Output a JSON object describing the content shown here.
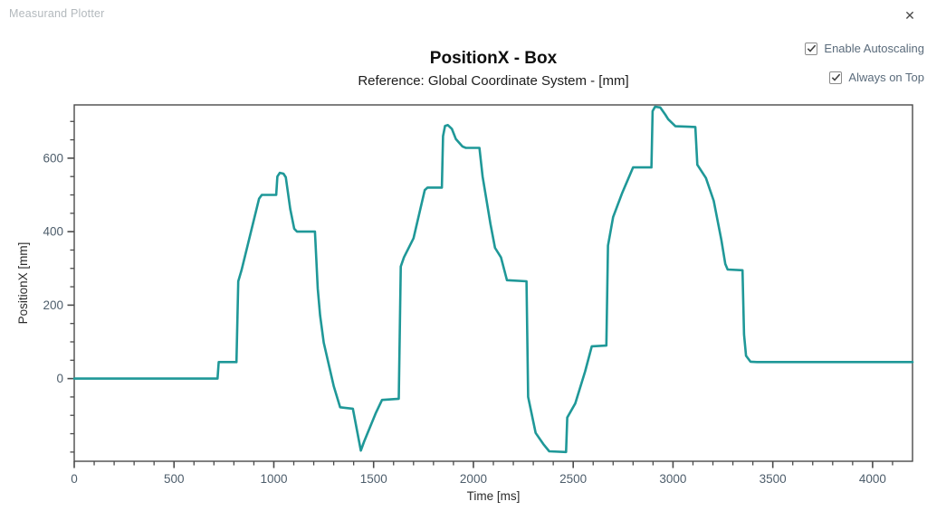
{
  "window": {
    "title": "Measurand Plotter",
    "close_glyph": "✕"
  },
  "controls": {
    "autoscaling": {
      "label": "Enable Autoscaling",
      "checked": true
    },
    "always_on_top": {
      "label": "Always on Top",
      "checked": true
    }
  },
  "chart_data": {
    "type": "line",
    "title": "PositionX - Box",
    "subtitle": "Reference: Global Coordinate System - [mm]",
    "xlabel": "Time [ms]",
    "ylabel": "PositionX [mm]",
    "xlim": [
      0,
      4200
    ],
    "ylim": [
      -225,
      745
    ],
    "xticks": {
      "major": [
        0,
        500,
        1000,
        1500,
        2000,
        2500,
        3000,
        3500,
        4000
      ],
      "minor_step": 100
    },
    "yticks": {
      "major": [
        0,
        200,
        400,
        600
      ],
      "minor_step": 50
    },
    "grid": false,
    "legend": "none",
    "colors": {
      "line": "#1f9898",
      "axis": "#4a4a4a",
      "tick_label": "#4d5d6b",
      "title": "#0e0e0e"
    },
    "series": [
      {
        "name": "PositionX",
        "points": [
          [
            0,
            0
          ],
          [
            718,
            0
          ],
          [
            724,
            45
          ],
          [
            813,
            45
          ],
          [
            822,
            265
          ],
          [
            838,
            295
          ],
          [
            926,
            490
          ],
          [
            940,
            500
          ],
          [
            1012,
            500
          ],
          [
            1018,
            550
          ],
          [
            1030,
            560
          ],
          [
            1048,
            558
          ],
          [
            1060,
            548
          ],
          [
            1082,
            462
          ],
          [
            1102,
            408
          ],
          [
            1116,
            400
          ],
          [
            1206,
            400
          ],
          [
            1220,
            245
          ],
          [
            1232,
            172
          ],
          [
            1250,
            98
          ],
          [
            1300,
            -20
          ],
          [
            1332,
            -78
          ],
          [
            1396,
            -82
          ],
          [
            1436,
            -196
          ],
          [
            1452,
            -172
          ],
          [
            1510,
            -95
          ],
          [
            1542,
            -58
          ],
          [
            1626,
            -55
          ],
          [
            1636,
            305
          ],
          [
            1652,
            330
          ],
          [
            1700,
            382
          ],
          [
            1756,
            513
          ],
          [
            1770,
            520
          ],
          [
            1842,
            520
          ],
          [
            1848,
            660
          ],
          [
            1858,
            688
          ],
          [
            1872,
            690
          ],
          [
            1892,
            680
          ],
          [
            1912,
            652
          ],
          [
            1945,
            632
          ],
          [
            1962,
            628
          ],
          [
            2030,
            628
          ],
          [
            2046,
            550
          ],
          [
            2085,
            422
          ],
          [
            2108,
            356
          ],
          [
            2138,
            330
          ],
          [
            2168,
            268
          ],
          [
            2266,
            265
          ],
          [
            2274,
            -50
          ],
          [
            2312,
            -148
          ],
          [
            2350,
            -178
          ],
          [
            2380,
            -198
          ],
          [
            2464,
            -200
          ],
          [
            2470,
            -106
          ],
          [
            2510,
            -68
          ],
          [
            2560,
            20
          ],
          [
            2593,
            88
          ],
          [
            2666,
            90
          ],
          [
            2674,
            362
          ],
          [
            2700,
            440
          ],
          [
            2746,
            506
          ],
          [
            2800,
            575
          ],
          [
            2892,
            575
          ],
          [
            2898,
            728
          ],
          [
            2910,
            740
          ],
          [
            2936,
            738
          ],
          [
            2962,
            718
          ],
          [
            2976,
            706
          ],
          [
            3012,
            687
          ],
          [
            3112,
            685
          ],
          [
            3122,
            582
          ],
          [
            3165,
            546
          ],
          [
            3204,
            484
          ],
          [
            3242,
            378
          ],
          [
            3262,
            312
          ],
          [
            3274,
            297
          ],
          [
            3348,
            295
          ],
          [
            3356,
            120
          ],
          [
            3366,
            62
          ],
          [
            3388,
            46
          ],
          [
            3420,
            45
          ],
          [
            4200,
            45
          ]
        ]
      }
    ]
  }
}
